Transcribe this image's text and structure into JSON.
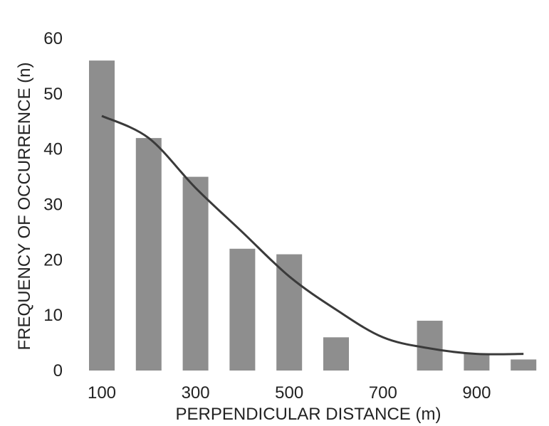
{
  "chart_data": {
    "type": "bar",
    "title": "",
    "xlabel": "PERPENDICULAR DISTANCE (m)",
    "ylabel": "FREQUENCY OF OCCURRENCE (n)",
    "x": [
      100,
      200,
      300,
      400,
      500,
      600,
      700,
      800,
      900,
      1000
    ],
    "values": [
      56,
      42,
      35,
      22,
      21,
      6,
      0,
      9,
      3,
      2
    ],
    "x_tick_labels": [
      "100",
      "300",
      "500",
      "700",
      "900"
    ],
    "x_tick_values": [
      100,
      300,
      500,
      700,
      900
    ],
    "y_tick_labels": [
      "0",
      "10",
      "20",
      "30",
      "40",
      "50",
      "60"
    ],
    "y_tick_values": [
      0,
      10,
      20,
      30,
      40,
      50,
      60
    ],
    "ylim": [
      0,
      60
    ],
    "xlim": [
      100,
      1000
    ],
    "grid": false,
    "legend": "none",
    "fit_line": {
      "x": [
        100,
        200,
        300,
        400,
        500,
        600,
        700,
        800,
        900,
        1000
      ],
      "y": [
        46,
        42,
        33,
        25,
        17,
        11,
        6,
        4,
        3,
        3
      ]
    },
    "colors": {
      "bar": "#8e8e8e",
      "line": "#3a3a3a",
      "text": "#222222"
    }
  }
}
